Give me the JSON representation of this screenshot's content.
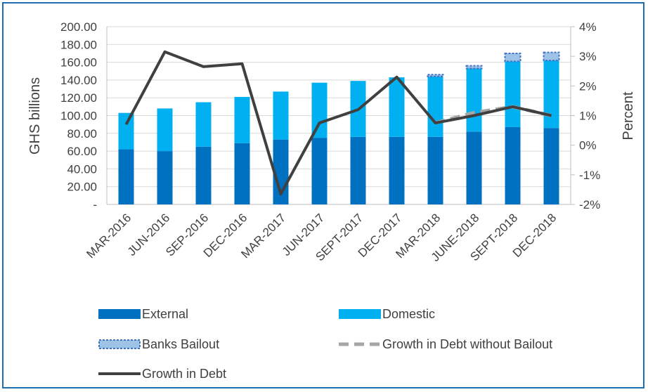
{
  "chart_data": {
    "type": "bar",
    "categories": [
      "MAR-2016",
      "JUN-2016",
      "SEP-2016",
      "DEC-2016",
      "MAR-2017",
      "JUN-2017",
      "SEPT-2017",
      "DEC-2017",
      "MAR-2018",
      "JUNE-2018",
      "SEPT-2018",
      "DEC-2018"
    ],
    "ylabel": "GHS billions",
    "y2label": "Percent",
    "ylim": [
      0,
      200
    ],
    "y2lim": [
      -2,
      4
    ],
    "yticks": [
      "-",
      "20.00",
      "40.00",
      "60.00",
      "80.00",
      "100.00",
      "120.00",
      "140.00",
      "160.00",
      "180.00",
      "200.00"
    ],
    "y2ticks": [
      "-2%",
      "-1%",
      "0%",
      "1%",
      "2%",
      "3%",
      "4%"
    ],
    "series": [
      {
        "name": "External",
        "kind": "bar-stacked",
        "color": "#0070c0",
        "values": [
          62,
          60,
          65,
          69,
          73,
          75,
          76,
          76,
          76,
          82,
          87,
          86
        ]
      },
      {
        "name": "Domestic",
        "kind": "bar-stacked",
        "color": "#00b0f0",
        "values": [
          41,
          48,
          50,
          52,
          54,
          62,
          63,
          67,
          68,
          71,
          74,
          76
        ]
      },
      {
        "name": "Banks Bailout",
        "kind": "bar-stacked",
        "color": "#9dc3e6",
        "values": [
          0,
          0,
          0,
          0,
          0,
          0,
          0,
          0,
          2,
          3,
          9,
          9
        ]
      },
      {
        "name": "Growth in Debt without Bailout",
        "kind": "line-dashed",
        "axis": "right",
        "color": "#a6a6a6",
        "values": [
          null,
          null,
          null,
          null,
          null,
          null,
          null,
          null,
          0.75,
          1.1,
          1.3,
          1.0
        ]
      },
      {
        "name": "Growth in Debt",
        "kind": "line",
        "axis": "right",
        "color": "#404040",
        "values": [
          0.7,
          3.15,
          2.65,
          2.75,
          -1.65,
          0.75,
          1.2,
          2.3,
          0.75,
          1.0,
          1.3,
          1.0
        ]
      }
    ],
    "legend": [
      {
        "label": "External",
        "swatch": "external"
      },
      {
        "label": "Domestic",
        "swatch": "domestic"
      },
      {
        "label": "Banks Bailout",
        "swatch": "bailout"
      },
      {
        "label": "Growth in Debt without Bailout",
        "swatch": "dashed"
      },
      {
        "label": "Growth in Debt",
        "swatch": "line"
      }
    ],
    "legend_position": "bottom",
    "grid": true
  }
}
